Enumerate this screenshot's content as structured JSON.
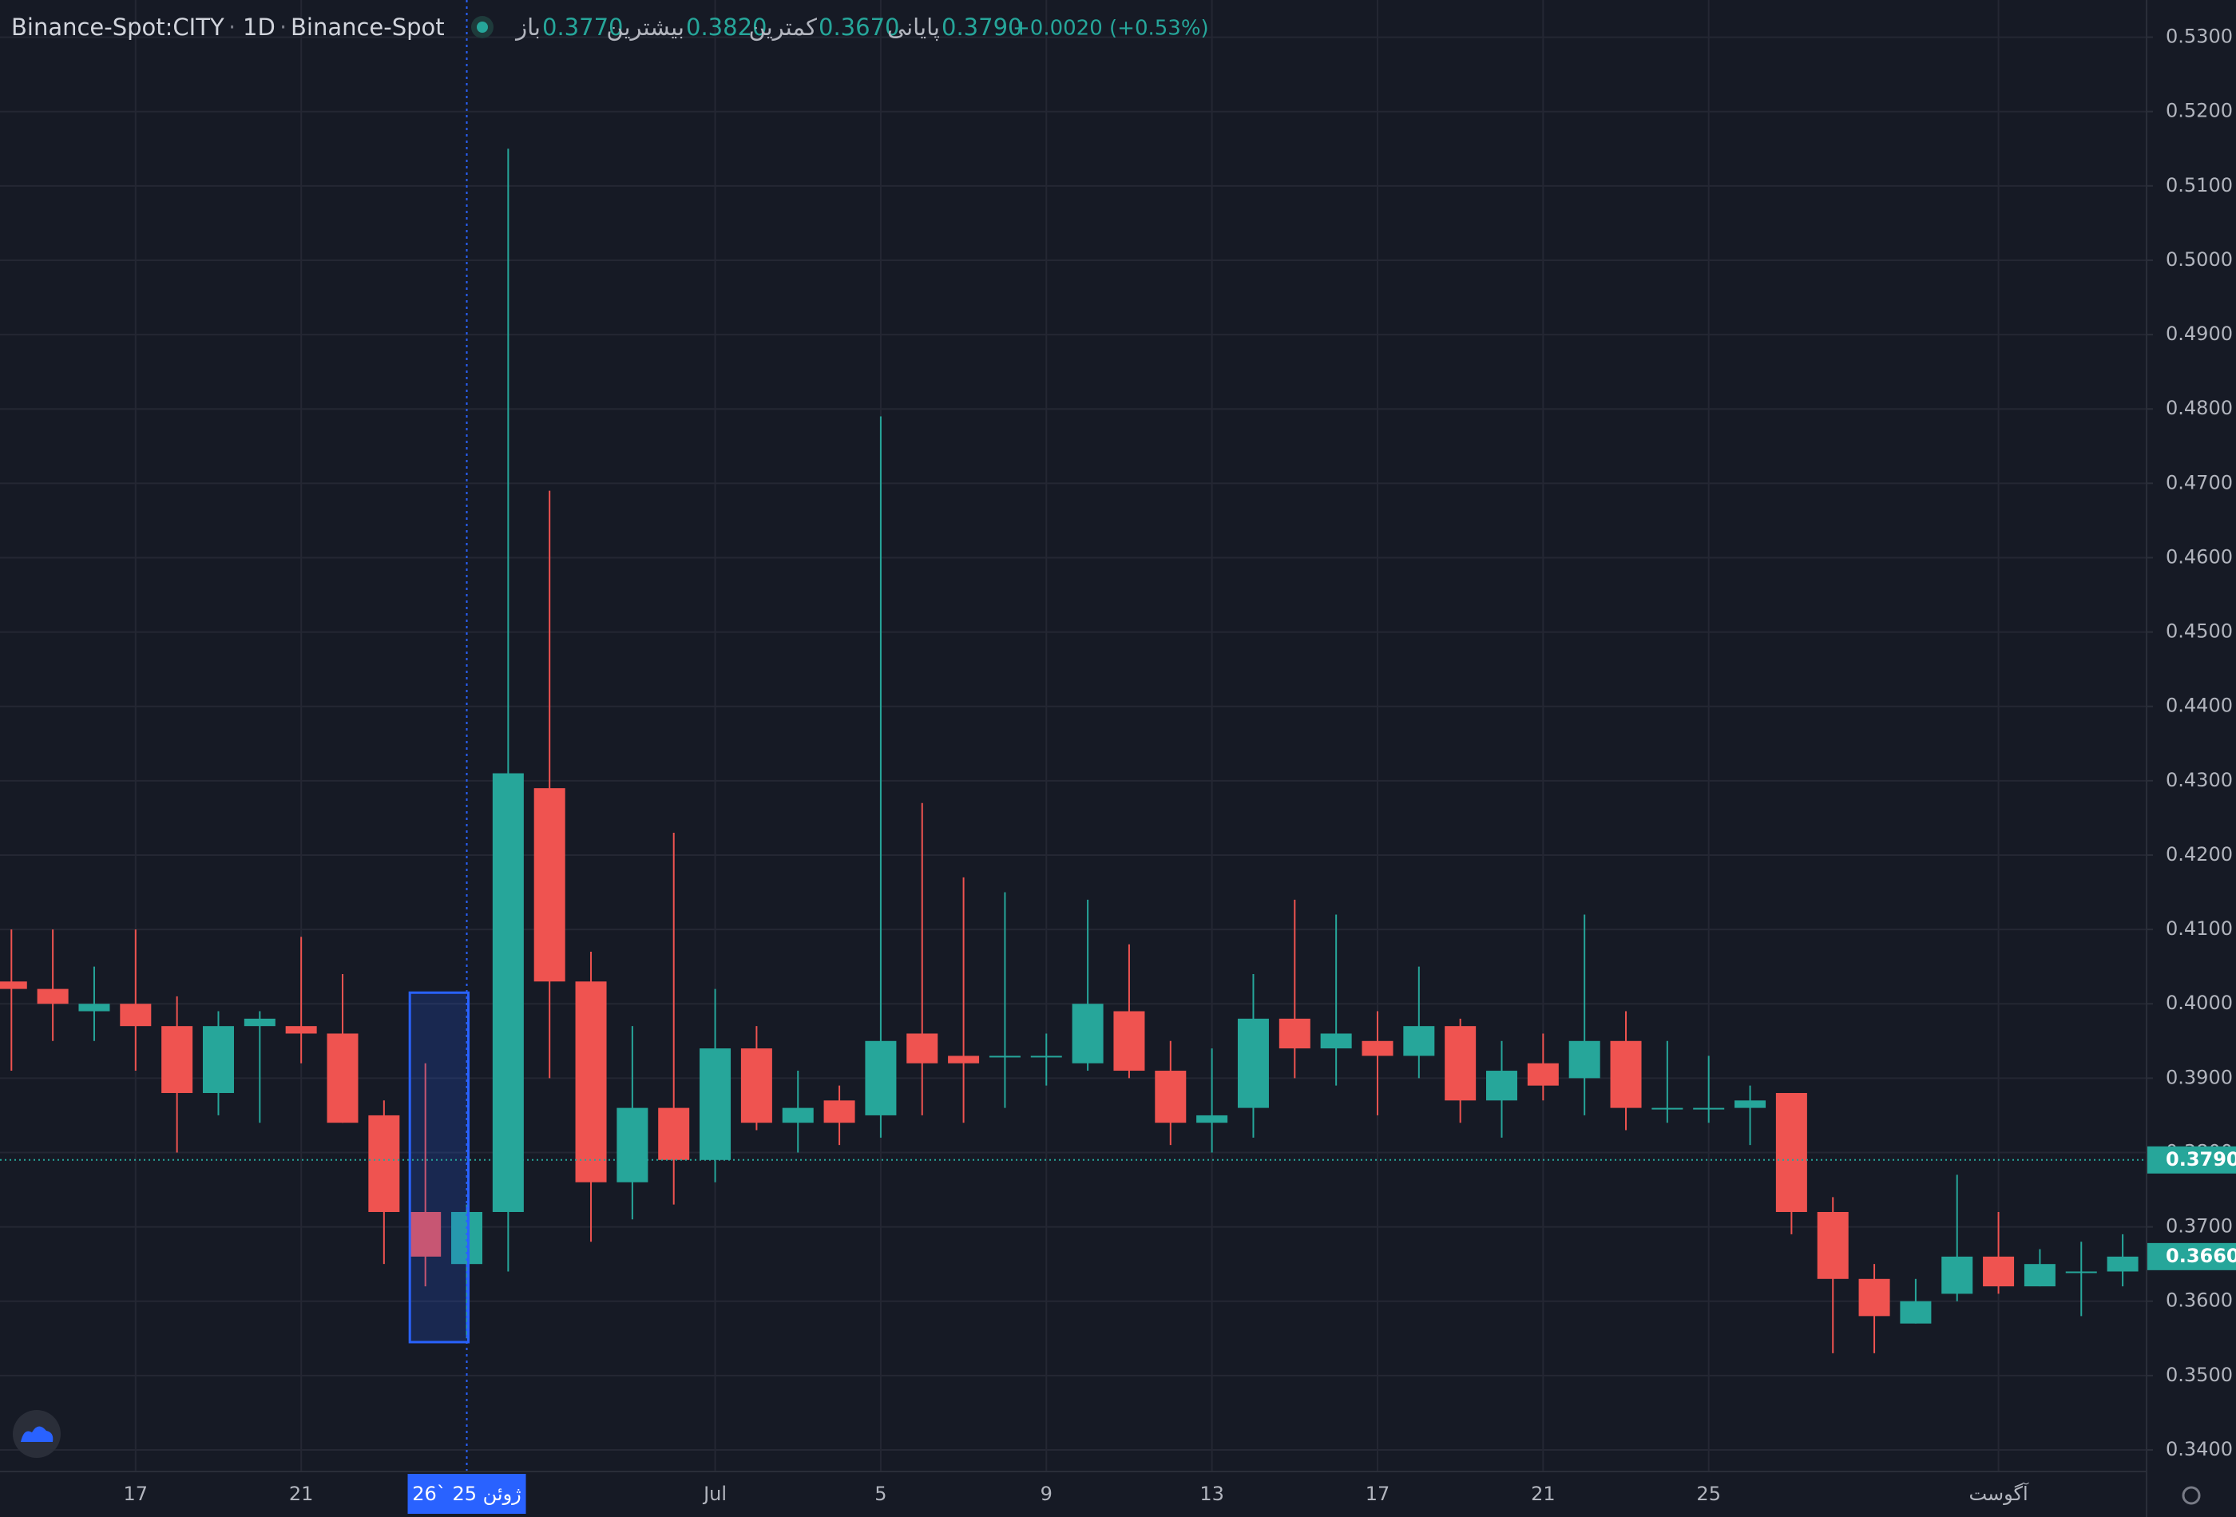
{
  "header": {
    "symbol": "Binance-Spot:CITY",
    "interval": "1D",
    "exchange": "Binance-Spot",
    "open_label": "باز",
    "open": "0.3770",
    "high_label": "بیشترین",
    "high": "0.3820",
    "low_label": "کمترین",
    "low": "0.3670",
    "close_label": "پایانی",
    "close": "0.3790",
    "change": "+0.0020 (+0.53%)"
  },
  "chart_data": {
    "type": "candlestick",
    "categories": [
      null,
      null,
      null,
      "17",
      null,
      null,
      null,
      "21",
      null,
      null,
      null,
      "26` ژوئن 25",
      null,
      null,
      null,
      null,
      null,
      "Jul",
      null,
      null,
      null,
      "5",
      null,
      null,
      null,
      "9",
      null,
      null,
      null,
      "13",
      null,
      null,
      null,
      "17",
      null,
      null,
      null,
      "21",
      null,
      null,
      null,
      "25",
      null,
      null,
      null,
      null,
      null,
      null,
      "آگوست",
      null,
      null,
      null
    ],
    "crosshair_index": 11,
    "open": [
      0.403,
      0.402,
      0.399,
      0.4,
      0.397,
      0.388,
      0.397,
      0.397,
      0.396,
      0.385,
      0.372,
      0.365,
      0.372,
      0.429,
      0.403,
      0.376,
      0.386,
      0.379,
      0.394,
      0.384,
      0.387,
      0.385,
      0.396,
      0.393,
      0.393,
      0.393,
      0.392,
      0.399,
      0.391,
      0.384,
      0.386,
      0.398,
      0.394,
      0.395,
      0.393,
      0.397,
      0.387,
      0.392,
      0.39,
      0.395,
      0.386,
      0.386,
      0.386,
      0.388,
      0.372,
      0.363,
      0.357,
      0.361,
      0.366,
      0.362,
      0.364,
      0.364
    ],
    "high": [
      0.41,
      0.41,
      0.405,
      0.41,
      0.401,
      0.399,
      0.399,
      0.409,
      0.404,
      0.387,
      0.392,
      0.373,
      0.515,
      0.469,
      0.407,
      0.397,
      0.423,
      0.402,
      0.397,
      0.391,
      0.389,
      0.479,
      0.427,
      0.417,
      0.415,
      0.396,
      0.414,
      0.408,
      0.395,
      0.394,
      0.404,
      0.414,
      0.412,
      0.399,
      0.405,
      0.398,
      0.395,
      0.396,
      0.412,
      0.399,
      0.395,
      0.393,
      0.389,
      0.388,
      0.374,
      0.365,
      0.363,
      0.377,
      0.372,
      0.367,
      0.368,
      0.369
    ],
    "low": [
      0.391,
      0.395,
      0.395,
      0.391,
      0.38,
      0.385,
      0.384,
      0.392,
      0.384,
      0.365,
      0.362,
      0.355,
      0.364,
      0.39,
      0.368,
      0.371,
      0.373,
      0.376,
      0.383,
      0.38,
      0.381,
      0.382,
      0.385,
      0.384,
      0.386,
      0.389,
      0.391,
      0.39,
      0.381,
      0.38,
      0.382,
      0.39,
      0.389,
      0.385,
      0.39,
      0.384,
      0.382,
      0.387,
      0.385,
      0.383,
      0.384,
      0.384,
      0.381,
      0.369,
      0.353,
      0.353,
      0.357,
      0.36,
      0.361,
      0.362,
      0.358,
      0.362
    ],
    "close": [
      0.402,
      0.4,
      0.4,
      0.397,
      0.388,
      0.397,
      0.398,
      0.396,
      0.384,
      0.372,
      0.366,
      0.372,
      0.431,
      0.403,
      0.376,
      0.386,
      0.379,
      0.394,
      0.384,
      0.386,
      0.384,
      0.395,
      0.392,
      0.392,
      0.393,
      0.393,
      0.4,
      0.391,
      0.384,
      0.385,
      0.398,
      0.394,
      0.396,
      0.393,
      0.397,
      0.387,
      0.391,
      0.389,
      0.395,
      0.386,
      0.386,
      0.386,
      0.387,
      0.372,
      0.363,
      0.358,
      0.36,
      0.366,
      0.362,
      0.365,
      0.364,
      0.366
    ],
    "up_color": "#26a69a",
    "down_color": "#ef5350",
    "selection": {
      "high": 0.4015,
      "low": 0.3545
    },
    "ylim": [
      0.3371,
      0.535
    ],
    "yticks": [
      {
        "value": 0.34,
        "label": "0.3400"
      },
      {
        "value": 0.35,
        "label": "0.3500"
      },
      {
        "value": 0.36,
        "label": "0.3600"
      },
      {
        "value": 0.37,
        "label": "0.3700"
      },
      {
        "value": 0.38,
        "label": "0.3800"
      },
      {
        "value": 0.39,
        "label": "0.3900"
      },
      {
        "value": 0.4,
        "label": "0.4000"
      },
      {
        "value": 0.41,
        "label": "0.4100"
      },
      {
        "value": 0.42,
        "label": "0.4200"
      },
      {
        "value": 0.43,
        "label": "0.4300"
      },
      {
        "value": 0.44,
        "label": "0.4400"
      },
      {
        "value": 0.45,
        "label": "0.4500"
      },
      {
        "value": 0.46,
        "label": "0.4600"
      },
      {
        "value": 0.47,
        "label": "0.4700"
      },
      {
        "value": 0.48,
        "label": "0.4800"
      },
      {
        "value": 0.49,
        "label": "0.4900"
      },
      {
        "value": 0.5,
        "label": "0.5000"
      },
      {
        "value": 0.51,
        "label": "0.5100"
      },
      {
        "value": 0.52,
        "label": "0.5200"
      },
      {
        "value": 0.53,
        "label": "0.5300"
      }
    ],
    "price_lines": [
      {
        "value": 0.379,
        "label": "0.3790"
      },
      {
        "value": 0.366,
        "label": "0.3660"
      }
    ],
    "grid": true
  }
}
